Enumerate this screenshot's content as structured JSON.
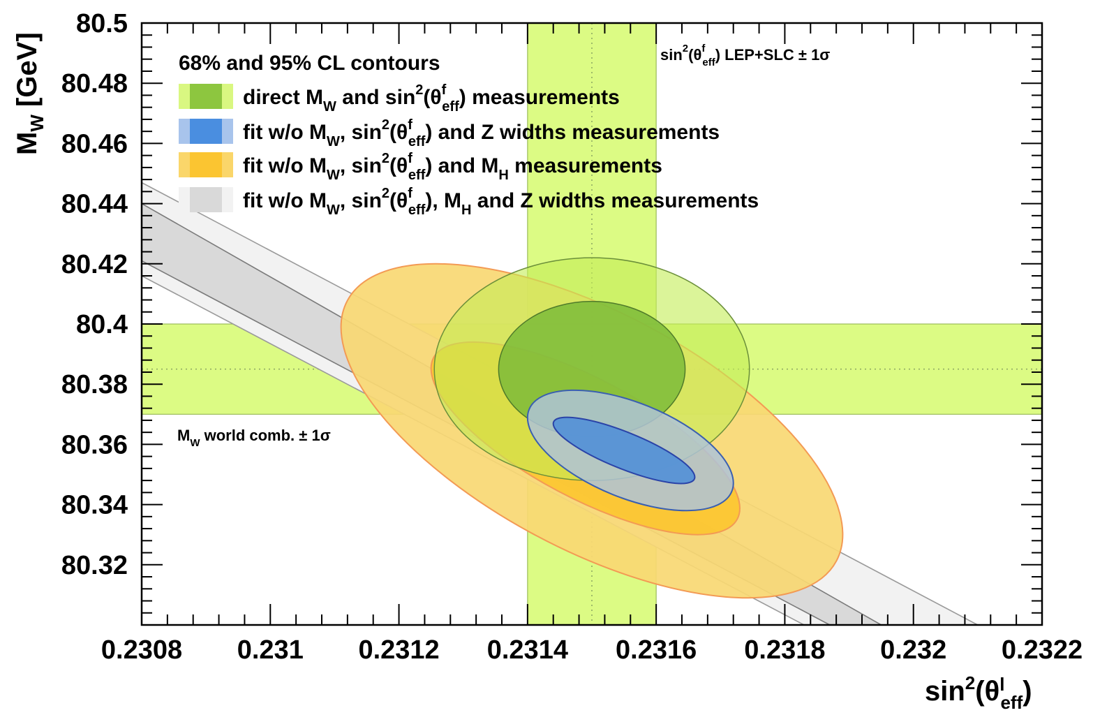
{
  "chart_data": {
    "type": "contour",
    "xlabel": "sin²(θ^l_eff)",
    "ylabel": "M_W [GeV]",
    "xlim": [
      0.2308,
      0.2322
    ],
    "ylim": [
      80.3,
      80.5
    ],
    "x_ticks": [
      "0.2308",
      "0.231",
      "0.2312",
      "0.2314",
      "0.2316",
      "0.2318",
      "0.232",
      "0.2322"
    ],
    "y_ticks": [
      "80.32",
      "80.34",
      "80.36",
      "80.38",
      "80.4",
      "80.42",
      "80.44",
      "80.46",
      "80.48",
      "80.5"
    ],
    "legend_title": "68% and 95% CL contours",
    "legend": [
      {
        "label": "direct M_W and sin²(θ^f_eff)  measurements",
        "inner_color": "#8dc63f",
        "outer_color": "#d9f781"
      },
      {
        "label": "fit w/o M_W, sin²(θ^f_eff) and Z widths measurements",
        "inner_color": "#4a8ee0",
        "outer_color": "#a8c4ec"
      },
      {
        "label": "fit w/o M_W, sin²(θ^f_eff) and M_H measurements",
        "inner_color": "#fbc531",
        "outer_color": "#fad66a"
      },
      {
        "label": "fit w/o M_W, sin²(θ^f_eff), M_H and Z widths measurements",
        "inner_color": "#d9d9d9",
        "outer_color": "#f2f2f2"
      }
    ],
    "annotations": {
      "mw_band": "M_W world comb. ± 1σ",
      "sin_band": "sin²(θ^f_eff) LEP+SLC ± 1σ"
    },
    "mw_band": {
      "center": 80.385,
      "low": 80.37,
      "high": 80.4
    },
    "sin2_band": {
      "center": 0.2315,
      "low": 0.2314,
      "high": 0.2316
    },
    "direct": {
      "center_x": 0.2315,
      "center_y": 80.385,
      "ellipse_68": {
        "half_width_x": 0.000145,
        "half_height_y": 0.0225
      },
      "ellipse_95": {
        "half_width_x": 0.000245,
        "half_height_y": 0.037
      }
    },
    "fit_no_z_widths": {
      "center_x": 0.23153,
      "center_y": 80.358,
      "contour_95": {
        "x_range": [
          0.2314,
          0.23172
        ],
        "y_range": [
          80.338,
          80.378
        ]
      },
      "contour_68": {
        "x_range": [
          0.23144,
          0.23166
        ],
        "y_range": [
          80.347,
          80.369
        ]
      }
    },
    "fit_no_mh": {
      "center_x": 0.2315,
      "center_y": 80.362,
      "contour_95": {
        "x_range": [
          0.23111,
          0.23189
        ],
        "y_range": [
          80.309,
          80.42
        ]
      },
      "contour_68": {
        "x_range": [
          0.23125,
          0.23173
        ],
        "y_range": [
          80.33,
          80.394
        ]
      }
    },
    "fit_no_mh_z": {
      "band_95_upper": [
        [
          0.2308,
          80.447
        ],
        [
          0.2321,
          80.3
        ]
      ],
      "band_95_lower": [
        [
          0.2308,
          80.416
        ],
        [
          0.23183,
          80.3
        ]
      ],
      "band_68_upper": [
        [
          0.2308,
          80.44
        ],
        [
          0.23195,
          80.3
        ]
      ],
      "band_68_lower": [
        [
          0.2308,
          80.421
        ],
        [
          0.23187,
          80.3
        ]
      ]
    },
    "grid": false
  }
}
